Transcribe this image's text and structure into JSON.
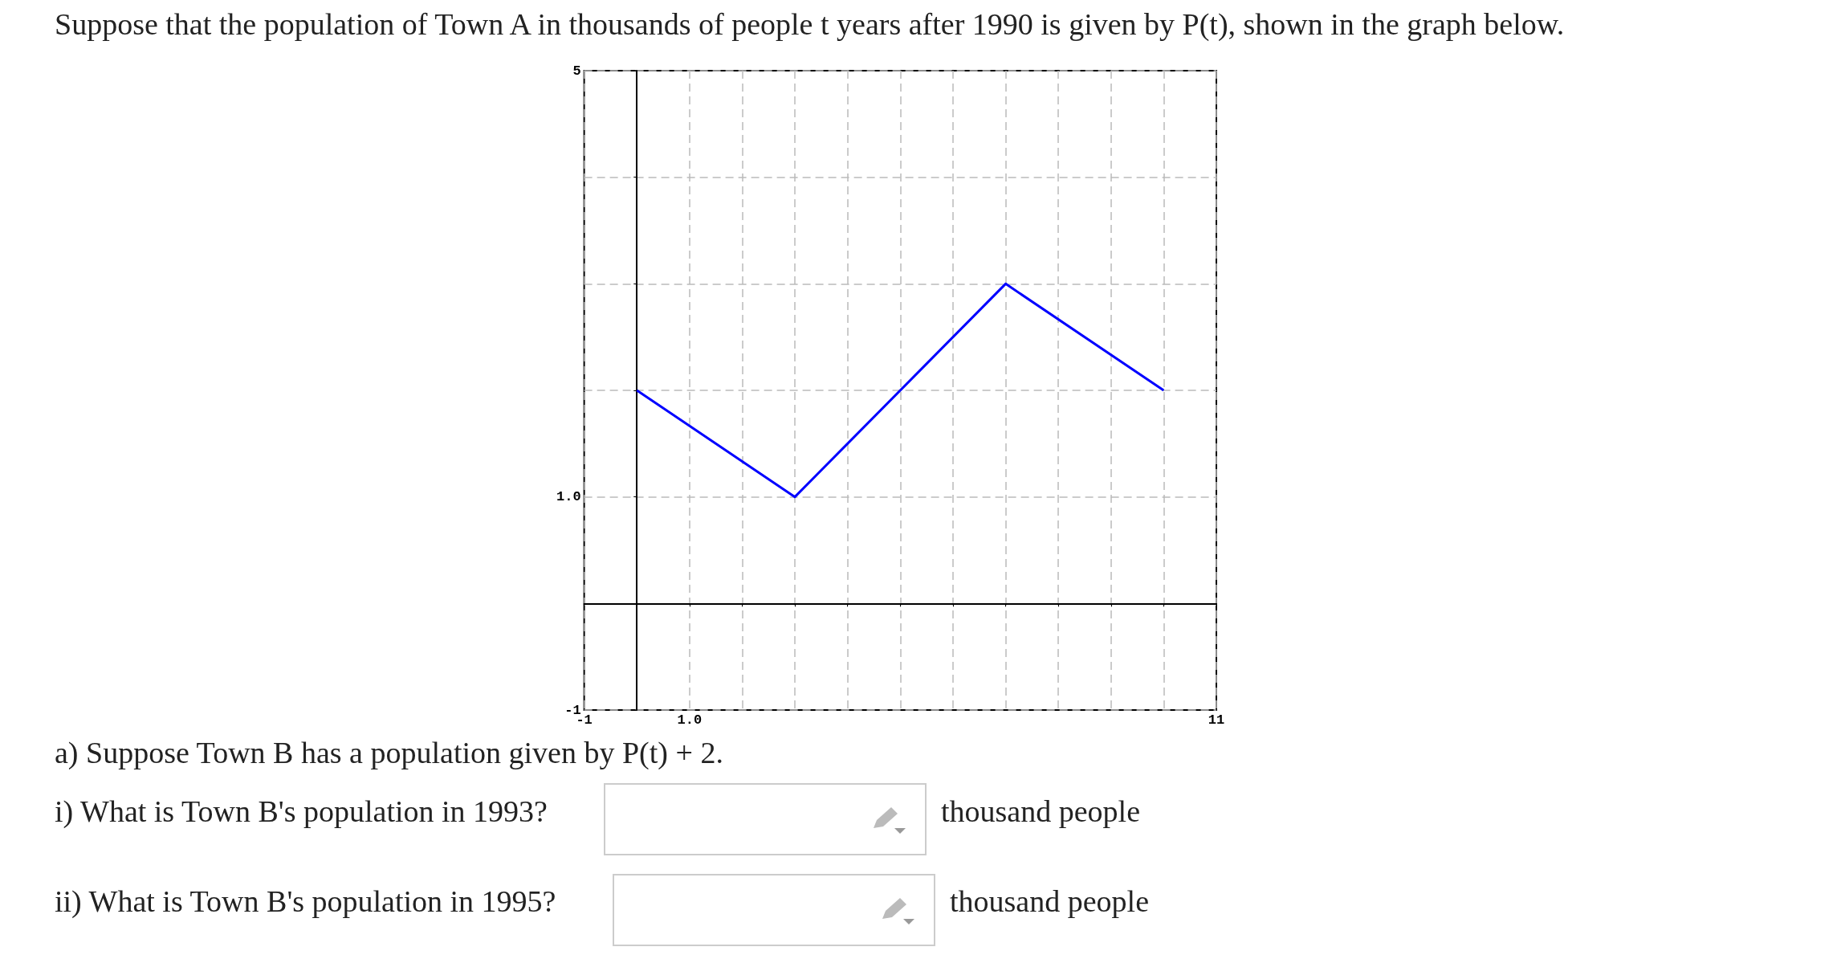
{
  "chart_data": {
    "type": "line",
    "title": "Suppose that the population of Town A in thousands of people t years after 1990 is given by P(t), shown in the graph below.",
    "annotations": [
      "a) Suppose Town B has a population given by P(t) + 2.",
      "i) What is Town B's population in 1993?",
      "thousand people",
      "ii) What is Town B's population in 1995?",
      "thousand people"
    ],
    "x": [
      0,
      3,
      7,
      10
    ],
    "series": [
      {
        "color": "#0000ff",
        "values": [
          2,
          1,
          3,
          2
        ]
      }
    ],
    "xlim": [
      -1,
      11
    ],
    "xticks": [
      {
        "value": -1,
        "label": "-1"
      },
      {
        "value": 0,
        "label": null
      },
      {
        "value": 1,
        "label": "1.0"
      },
      {
        "value": 2,
        "label": null
      },
      {
        "value": 3,
        "label": null
      },
      {
        "value": 4,
        "label": null
      },
      {
        "value": 5,
        "label": null
      },
      {
        "value": 6,
        "label": null
      },
      {
        "value": 7,
        "label": null
      },
      {
        "value": 8,
        "label": null
      },
      {
        "value": 9,
        "label": null
      },
      {
        "value": 10,
        "label": null
      },
      {
        "value": 11,
        "label": "11"
      }
    ],
    "ylim": [
      -1,
      5
    ],
    "yticks": [
      {
        "value": -1,
        "label": "-1"
      },
      {
        "value": 0,
        "label": null
      },
      {
        "value": 1,
        "label": "1.0"
      },
      {
        "value": 2,
        "label": null
      },
      {
        "value": 3,
        "label": null
      },
      {
        "value": 4,
        "label": null
      },
      {
        "value": 5,
        "label": "5"
      }
    ],
    "grid": true,
    "marker": "none",
    "line_style": "solid"
  }
}
